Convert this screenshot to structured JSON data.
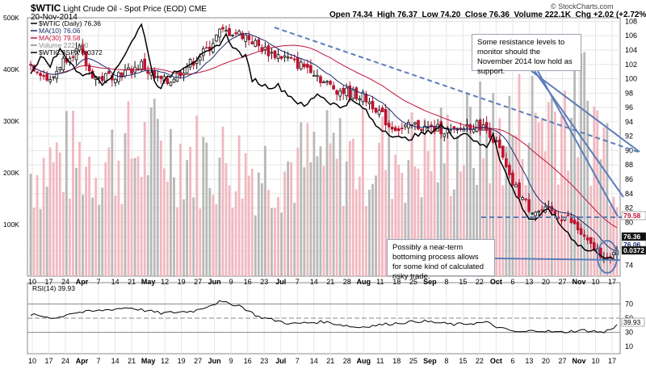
{
  "header": {
    "symbol": "$WTIC",
    "name": "Light Crude Oil - Spot Price (EOD)",
    "exchange": "CME",
    "date": "20-Nov-2014",
    "open_label": "Open",
    "open": "74.34",
    "high_label": "High",
    "high": "76.37",
    "low_label": "Low",
    "low": "74.20",
    "close_label": "Close",
    "close": "76.36",
    "volume_label": "Volume",
    "volume": "222.1K",
    "chg_label": "Chg",
    "chg": "+2.02 (+2.72%)",
    "copyright": "© StockCharts.com"
  },
  "legend": [
    {
      "label": "$WTIC (Daily) 76.36",
      "color": "#000000"
    },
    {
      "label": "MA(10) 76.06",
      "color": "#1a2a6c"
    },
    {
      "label": "MA(30) 79.58",
      "color": "#c0143c"
    },
    {
      "label": "Volume 222,150",
      "color": "#888888"
    },
    {
      "label": "$WTIC:$SPX 0.0372",
      "color": "#000000"
    }
  ],
  "notes": {
    "resistance": "Some resistance levels to monitor should the November 2014 low hold as support.",
    "bottoming": "Possibly a near-term bottoming process allows for some kind of calculated risky trade."
  },
  "rsi_label": "RSI(14) 39.93",
  "chart_data": {
    "type": "candlestick",
    "price_axis": {
      "ticks": [
        "108",
        "106",
        "104",
        "102",
        "100",
        "98",
        "96",
        "94",
        "92",
        "90",
        "88",
        "86",
        "84",
        "82",
        "80",
        "78",
        "76",
        "74"
      ],
      "ylim": [
        72.5,
        108.5
      ]
    },
    "volume_axis": {
      "ticks": [
        "500K",
        "400K",
        "300K",
        "200K",
        "100K"
      ],
      "ylim": [
        0,
        500000
      ]
    },
    "rsi_axis": {
      "ticks": [
        "70",
        "50",
        "30",
        "10"
      ],
      "ylim": [
        0,
        100
      ],
      "lines": [
        70,
        50,
        30
      ]
    },
    "x_labels": [
      "10",
      "17",
      "24",
      "Apr",
      "7",
      "14",
      "21",
      "May",
      "12",
      "19",
      "27",
      "Jun",
      "9",
      "16",
      "23",
      "Jul",
      "7",
      "14",
      "21",
      "28",
      "Aug",
      "11",
      "18",
      "25",
      "Sep",
      "8",
      "15",
      "22",
      "Oct",
      "6",
      "13",
      "20",
      "27",
      "Nov",
      "10",
      "17"
    ],
    "price_keypoints": [
      [
        0,
        102
      ],
      [
        3,
        101
      ],
      [
        6,
        99.5
      ],
      [
        9,
        102
      ],
      [
        12,
        103.5
      ],
      [
        15,
        104
      ],
      [
        18,
        101
      ],
      [
        21,
        100
      ],
      [
        25,
        100.5
      ],
      [
        30,
        101
      ],
      [
        34,
        102
      ],
      [
        38,
        100
      ],
      [
        42,
        99.5
      ],
      [
        46,
        101
      ],
      [
        50,
        102.5
      ],
      [
        54,
        104
      ],
      [
        58,
        106.5
      ],
      [
        62,
        106.5
      ],
      [
        66,
        106
      ],
      [
        70,
        104.5
      ],
      [
        74,
        103.5
      ],
      [
        78,
        103
      ],
      [
        82,
        102
      ],
      [
        86,
        101.5
      ],
      [
        90,
        99.5
      ],
      [
        94,
        98.5
      ],
      [
        98,
        98
      ],
      [
        102,
        97.5
      ],
      [
        106,
        96
      ],
      [
        110,
        93.5
      ],
      [
        114,
        93
      ],
      [
        118,
        93.5
      ],
      [
        122,
        93
      ],
      [
        126,
        93
      ],
      [
        130,
        92.5
      ],
      [
        134,
        93.5
      ],
      [
        138,
        93.5
      ],
      [
        141,
        92.5
      ],
      [
        144,
        90
      ],
      [
        147,
        86
      ],
      [
        150,
        84
      ],
      [
        153,
        82
      ],
      [
        156,
        81.5
      ],
      [
        159,
        81.5
      ],
      [
        162,
        81
      ],
      [
        165,
        80.5
      ],
      [
        168,
        79
      ],
      [
        171,
        77
      ],
      [
        174,
        76
      ],
      [
        176,
        75.5
      ],
      [
        178,
        74.5
      ],
      [
        180,
        76.4
      ]
    ],
    "ratio_keypoints": [
      [
        0,
        101
      ],
      [
        3,
        103
      ],
      [
        6,
        102
      ],
      [
        9,
        104
      ],
      [
        12,
        102.5
      ],
      [
        15,
        100.5
      ],
      [
        18,
        101
      ],
      [
        22,
        99.5
      ],
      [
        26,
        101
      ],
      [
        30,
        104.5
      ],
      [
        34,
        107.5
      ],
      [
        36,
        104
      ],
      [
        38,
        99.5
      ],
      [
        40,
        99
      ],
      [
        44,
        101
      ],
      [
        48,
        102
      ],
      [
        52,
        103
      ],
      [
        56,
        104
      ],
      [
        60,
        106
      ],
      [
        63,
        104
      ],
      [
        66,
        103
      ],
      [
        68,
        100
      ],
      [
        72,
        99
      ],
      [
        76,
        99
      ],
      [
        80,
        97.5
      ],
      [
        84,
        96
      ],
      [
        88,
        98
      ],
      [
        91,
        97
      ],
      [
        95,
        96
      ],
      [
        98,
        97
      ],
      [
        102,
        96
      ],
      [
        106,
        93.5
      ],
      [
        110,
        92.5
      ],
      [
        114,
        91.5
      ],
      [
        118,
        92
      ],
      [
        122,
        92.5
      ],
      [
        126,
        93.5
      ],
      [
        130,
        92
      ],
      [
        134,
        92.5
      ],
      [
        137,
        91
      ],
      [
        140,
        90.5
      ],
      [
        142,
        92.5
      ],
      [
        144,
        89
      ],
      [
        147,
        85.5
      ],
      [
        150,
        83
      ],
      [
        153,
        80.5
      ],
      [
        156,
        80.5
      ],
      [
        159,
        82
      ],
      [
        162,
        80
      ],
      [
        165,
        78.5
      ],
      [
        168,
        77
      ],
      [
        171,
        76
      ],
      [
        174,
        76
      ],
      [
        177,
        75
      ],
      [
        180,
        74.5
      ]
    ],
    "ma10": {
      "name": "MA(10)",
      "last": 76.06
    },
    "ma30": {
      "name": "MA(30)",
      "last": 79.58
    },
    "volume_keypoints": [
      [
        0,
        200
      ],
      [
        10,
        230
      ],
      [
        20,
        220
      ],
      [
        30,
        240
      ],
      [
        40,
        250
      ],
      [
        50,
        230
      ],
      [
        60,
        220
      ],
      [
        70,
        210
      ],
      [
        80,
        215
      ],
      [
        90,
        225
      ],
      [
        100,
        230
      ],
      [
        110,
        240
      ],
      [
        120,
        230
      ],
      [
        130,
        250
      ],
      [
        140,
        270
      ],
      [
        150,
        290
      ],
      [
        160,
        320
      ],
      [
        170,
        330
      ],
      [
        180,
        222
      ]
    ],
    "rsi_keypoints": [
      [
        0,
        55
      ],
      [
        8,
        50
      ],
      [
        12,
        57
      ],
      [
        20,
        60
      ],
      [
        30,
        65
      ],
      [
        40,
        57
      ],
      [
        50,
        60
      ],
      [
        58,
        73
      ],
      [
        64,
        68
      ],
      [
        70,
        52
      ],
      [
        80,
        42
      ],
      [
        90,
        45
      ],
      [
        100,
        37
      ],
      [
        110,
        42
      ],
      [
        120,
        46
      ],
      [
        130,
        41
      ],
      [
        140,
        44
      ],
      [
        144,
        36
      ],
      [
        150,
        30
      ],
      [
        156,
        33
      ],
      [
        162,
        30
      ],
      [
        170,
        33
      ],
      [
        176,
        30
      ],
      [
        180,
        39.93
      ]
    ],
    "price_labels": [
      "79.58",
      "76.36",
      "76.06",
      "0.0372"
    ],
    "annotations": [
      "Some resistance levels to monitor should the November 2014 low hold as support.",
      "Possibly a near-term bottoming process allows for some kind of calculated risky trade."
    ]
  }
}
